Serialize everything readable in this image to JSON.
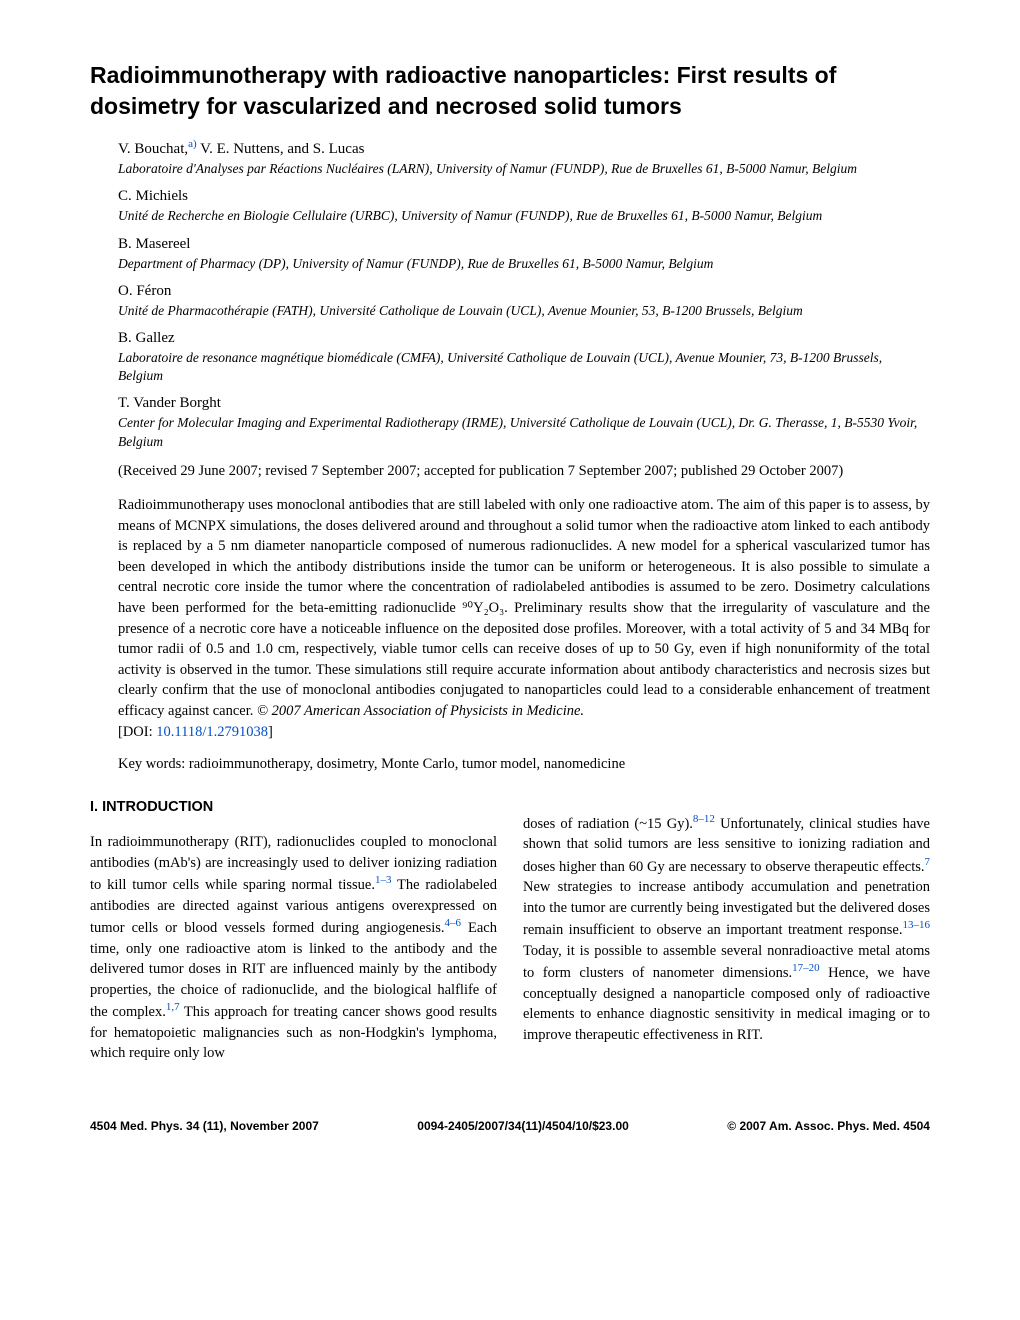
{
  "title": "Radioimmunotherapy with radioactive nanoparticles: First results of dosimetry for vascularized and necrosed solid tumors",
  "authorGroups": [
    {
      "authors": "V. Bouchat,",
      "sup": "a)",
      "authors2": " V. E. Nuttens, and S. Lucas",
      "affil": "Laboratoire d'Analyses par Réactions Nucléaires (LARN), University of Namur (FUNDP), Rue de Bruxelles 61, B-5000 Namur, Belgium"
    },
    {
      "authors": "C. Michiels",
      "affil": "Unité de Recherche en Biologie Cellulaire (URBC), University of Namur (FUNDP), Rue de Bruxelles 61, B-5000 Namur, Belgium"
    },
    {
      "authors": "B. Masereel",
      "affil": "Department of Pharmacy (DP), University of Namur (FUNDP), Rue de Bruxelles 61, B-5000 Namur, Belgium"
    },
    {
      "authors": "O. Féron",
      "affil": "Unité de Pharmacothérapie (FATH), Université Catholique de Louvain (UCL), Avenue Mounier, 53, B-1200 Brussels, Belgium"
    },
    {
      "authors": "B. Gallez",
      "affil": "Laboratoire de resonance magnétique biomédicale (CMFA), Université Catholique de Louvain (UCL), Avenue Mounier, 73, B-1200 Brussels, Belgium"
    },
    {
      "authors": "T. Vander Borght",
      "affil": "Center for Molecular Imaging and Experimental Radiotherapy (IRME), Université Catholique de Louvain (UCL), Dr. G. Therasse, 1, B-5530 Yvoir, Belgium"
    }
  ],
  "dates": "(Received 29 June 2007; revised 7 September 2007; accepted for publication 7 September 2007; published 29 October 2007)",
  "abstract": "Radioimmunotherapy uses monoclonal antibodies that are still labeled with only one radioactive atom. The aim of this paper is to assess, by means of MCNPX simulations, the doses delivered around and throughout a solid tumor when the radioactive atom linked to each antibody is replaced by a 5 nm diameter nanoparticle composed of numerous radionuclides. A new model for a spherical vascularized tumor has been developed in which the antibody distributions inside the tumor can be uniform or heterogeneous. It is also possible to simulate a central necrotic core inside the tumor where the concentration of radiolabeled antibodies is assumed to be zero. Dosimetry calculations have been performed for the beta-emitting radionuclide ⁹⁰Y₂O₃. Preliminary results show that the irregularity of vasculature and the presence of a necrotic core have a noticeable influence on the deposited dose profiles. Moreover, with a total activity of 5 and 34 MBq for tumor radii of 0.5 and 1.0 cm, respectively, viable tumor cells can receive doses of up to 50 Gy, even if high nonuniformity of the total activity is observed in the tumor. These simulations still require accurate information about antibody characteristics and necrosis sizes but clearly confirm that the use of monoclonal antibodies conjugated to nanoparticles could lead to a considerable enhancement of treatment efficacy against cancer. ",
  "copyright": "© 2007 American Association of Physicists in Medicine.",
  "doiLabel": "[DOI: ",
  "doi": "10.1118/1.2791038",
  "doiClose": "]",
  "keywords": "Key words: radioimmunotherapy, dosimetry, Monte Carlo, tumor model, nanomedicine",
  "sectionHeading": "I. INTRODUCTION",
  "col1a": "In radioimmunotherapy (RIT), radionuclides coupled to monoclonal antibodies (mAb's) are increasingly used to deliver ionizing radiation to kill tumor cells while sparing normal tissue.",
  "ref1": "1–3",
  "col1b": " The radiolabeled antibodies are directed against various antigens overexpressed on tumor cells or blood vessels formed during angiogenesis.",
  "ref2": "4–6",
  "col1c": " Each time, only one radioactive atom is linked to the antibody and the delivered tumor doses in RIT are influenced mainly by the antibody properties, the choice of radionuclide, and the biological halflife of the complex.",
  "ref3": "1,7",
  "col1d": " This approach for treating cancer shows good results for hematopoietic malignancies such as non-Hodgkin's lymphoma, which require only low",
  "col2a": "doses of radiation (~15 Gy).",
  "ref4": "8–12",
  "col2b": " Unfortunately, clinical studies have shown that solid tumors are less sensitive to ionizing radiation and doses higher than 60 Gy are necessary to observe therapeutic effects.",
  "ref5": "7",
  "col2c": " New strategies to increase antibody accumulation and penetration into the tumor are currently being investigated but the delivered doses remain insufficient to observe an important treatment response.",
  "ref6": "13–16",
  "col2d": " Today, it is possible to assemble several nonradioactive metal atoms to form clusters of nanometer dimensions.",
  "ref7": "17–20",
  "col2e": " Hence, we have conceptually designed a nanoparticle composed only of radioactive elements to enhance diagnostic sensitivity in medical imaging or to improve therapeutic effectiveness in RIT.",
  "footer": {
    "left": "4504    Med. Phys. 34 (11), November 2007",
    "center": "0094-2405/2007/34(11)/4504/10/$23.00",
    "right": "© 2007 Am. Assoc. Phys. Med.    4504"
  }
}
